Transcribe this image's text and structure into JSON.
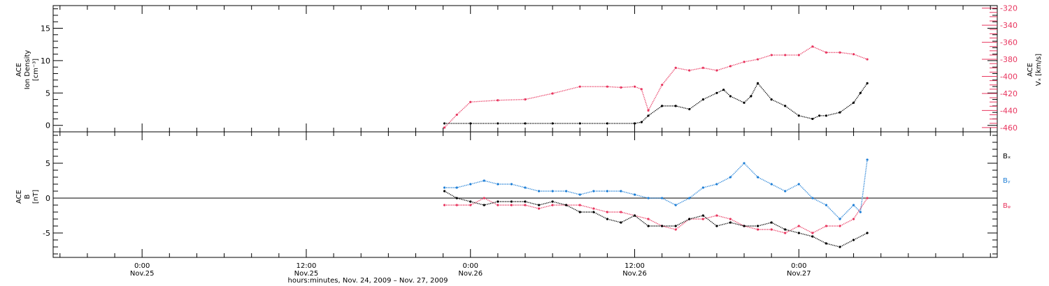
{
  "chart_data": [
    {
      "type": "scatter",
      "panel": "top",
      "ylabel_lines": [
        "ACE",
        "Ion Density",
        "[cm⁻³]"
      ],
      "y2label_lines": [
        "ACE",
        "Vₓ [km/s]"
      ],
      "ylim": [
        -1,
        18.5
      ],
      "yticks": [
        0,
        5,
        10,
        15
      ],
      "y2lim": [
        -465,
        -317
      ],
      "y2ticks": [
        -320,
        -340,
        -360,
        -380,
        -400,
        -420,
        -440,
        -460
      ],
      "series": [
        {
          "key": "density",
          "color": "#000000",
          "x": [
            16.1,
            18,
            20,
            22,
            24,
            26,
            28,
            30,
            30.5,
            31,
            32,
            33,
            34,
            35,
            36,
            36.5,
            37,
            38,
            38.5,
            39,
            40,
            41,
            42,
            43,
            43.5,
            44,
            45,
            46,
            46.5,
            47
          ],
          "y": [
            0.3,
            0.3,
            0.3,
            0.3,
            0.3,
            0.3,
            0.3,
            0.3,
            0.5,
            1.5,
            3,
            3,
            2.5,
            4,
            5,
            5.5,
            4.5,
            3.5,
            4.5,
            6.5,
            4,
            3,
            1.5,
            1,
            1.5,
            1.5,
            2,
            3.5,
            5,
            6.5
          ]
        },
        {
          "key": "vx",
          "color": "#e8365f",
          "x": [
            16.1,
            17,
            18,
            20,
            22,
            24,
            26,
            28,
            29,
            30,
            30.5,
            31,
            32,
            33,
            34,
            35,
            36,
            37,
            38,
            39,
            40,
            41,
            42,
            43,
            44,
            45,
            46,
            47
          ],
          "y": [
            -460,
            -445,
            -430,
            -428,
            -427,
            -420,
            -412,
            -412,
            -413,
            -412,
            -415,
            -440,
            -410,
            -390,
            -393,
            -390,
            -393,
            -388,
            -383,
            -380,
            -375,
            -375,
            -375,
            -365,
            -372,
            -372,
            -374,
            -380
          ]
        }
      ]
    },
    {
      "type": "scatter",
      "panel": "bottom",
      "ylabel_lines": [
        "ACE",
        "B",
        "[nT]"
      ],
      "ylim": [
        -8.5,
        9.5
      ],
      "yticks": [
        -5,
        0,
        5
      ],
      "zero_line": true,
      "legend": [
        "Bₓ",
        "Bᵧ",
        "Bᵩ"
      ],
      "series": [
        {
          "key": "bx",
          "color": "#000000",
          "x": [
            16.1,
            17,
            18,
            19,
            20,
            21,
            22,
            23,
            24,
            25,
            26,
            27,
            28,
            29,
            30,
            31,
            32,
            33,
            34,
            35,
            36,
            37,
            38,
            39,
            40,
            41,
            42,
            43,
            44,
            45,
            46,
            47
          ],
          "y": [
            1,
            0,
            -0.5,
            -1,
            -0.5,
            -0.5,
            -0.5,
            -1,
            -0.5,
            -1,
            -2,
            -2,
            -3,
            -3.5,
            -2.5,
            -4,
            -4,
            -4,
            -3,
            -2.5,
            -4,
            -3.5,
            -4,
            -4,
            -3.5,
            -4.5,
            -5,
            -5.5,
            -6.5,
            -7,
            -6,
            -5
          ]
        },
        {
          "key": "by",
          "color": "#1f7fd6",
          "x": [
            16.1,
            17,
            18,
            19,
            20,
            21,
            22,
            23,
            24,
            25,
            26,
            27,
            28,
            29,
            30,
            31,
            32,
            33,
            34,
            35,
            36,
            37,
            38,
            39,
            40,
            41,
            42,
            43,
            44,
            45,
            46,
            46.5,
            47
          ],
          "y": [
            1.5,
            1.5,
            2,
            2.5,
            2,
            2,
            1.5,
            1,
            1,
            1,
            0.5,
            1,
            1,
            1,
            0.5,
            0,
            0,
            -1,
            0,
            1.5,
            2,
            3,
            5,
            3,
            2,
            1,
            2,
            0,
            -1,
            -3,
            -1,
            -2,
            5.5
          ]
        },
        {
          "key": "bz",
          "color": "#e8365f",
          "x": [
            16.1,
            17,
            18,
            19,
            20,
            21,
            22,
            23,
            24,
            25,
            26,
            27,
            28,
            29,
            30,
            31,
            32,
            33,
            34,
            35,
            36,
            37,
            38,
            39,
            40,
            41,
            42,
            43,
            44,
            45,
            46,
            47
          ],
          "y": [
            -1,
            -1,
            -1,
            0,
            -1,
            -1,
            -1,
            -1.5,
            -1,
            -1,
            -1,
            -1.5,
            -2,
            -2,
            -2.5,
            -3,
            -4,
            -4.5,
            -3,
            -3,
            -2.5,
            -3,
            -4,
            -4.5,
            -4.5,
            -5,
            -4,
            -5,
            -4,
            -4,
            -3,
            0
          ]
        }
      ]
    }
  ],
  "x_axis": {
    "xlim": [
      -12.5,
      56.5
    ],
    "major_ticks": [
      {
        "x": -6,
        "time": "0:00",
        "date": "Nov.25"
      },
      {
        "x": 6,
        "time": "12:00",
        "date": "Nov.25"
      },
      {
        "x": 18,
        "time": "0:00",
        "date": "Nov.26"
      },
      {
        "x": 30,
        "time": "12:00",
        "date": "Nov.26"
      },
      {
        "x": 42,
        "time": "0:00",
        "date": "Nov.27"
      }
    ],
    "minor_step": 2,
    "label": "hours:minutes, Nov. 24, 2009 – Nov. 27, 2009"
  }
}
